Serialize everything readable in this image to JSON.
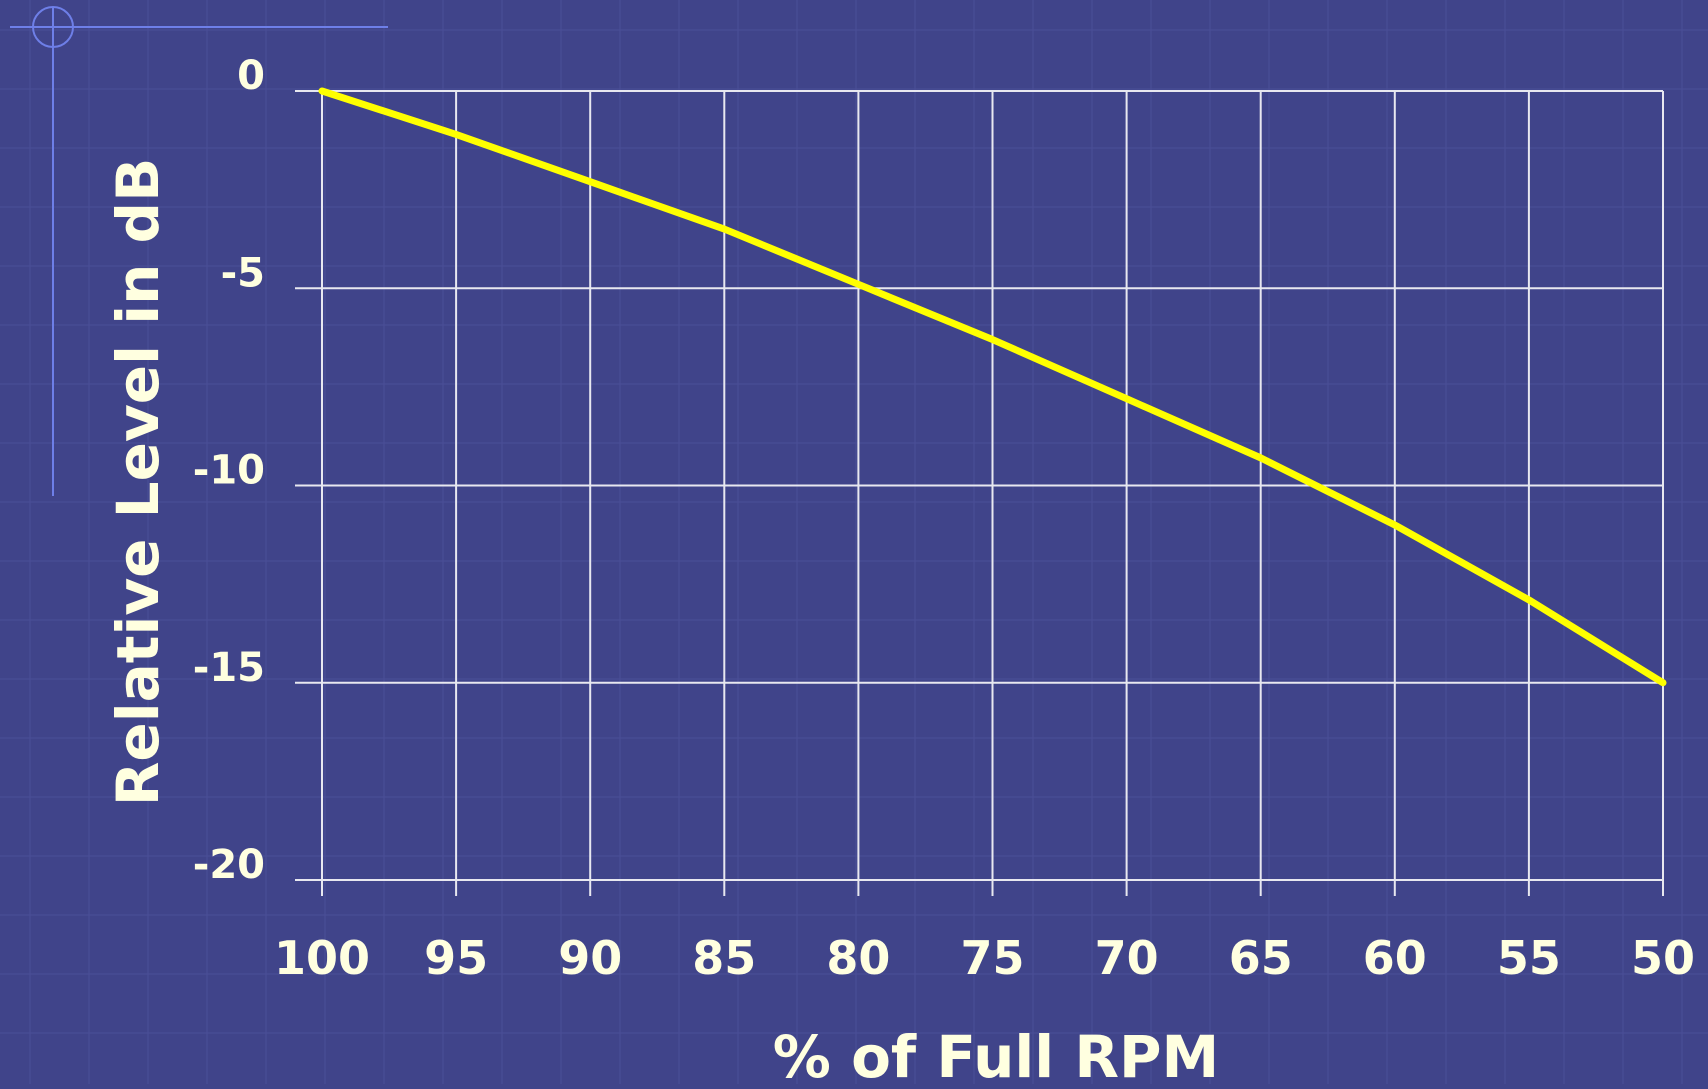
{
  "chart_data": {
    "type": "line",
    "title": "",
    "xlabel": "% of Full RPM",
    "ylabel": "Relative Level in dB",
    "x_ticks": [
      100,
      95,
      90,
      85,
      80,
      75,
      70,
      65,
      60,
      55,
      50
    ],
    "y_ticks": [
      0,
      -5,
      -10,
      -15,
      -20
    ],
    "xlim": [
      100,
      50
    ],
    "ylim": [
      -20,
      0
    ],
    "grid": true,
    "series": [
      {
        "x": [
          100,
          95,
          90,
          85,
          80,
          75,
          70,
          65,
          60,
          55,
          50
        ],
        "y": [
          0,
          -1.1,
          -2.3,
          -3.5,
          -4.9,
          -6.3,
          -7.8,
          -9.3,
          -11.0,
          -12.9,
          -15.0
        ]
      }
    ]
  },
  "colors": {
    "background": "#40448a",
    "grid": "#e8e8f0",
    "line": "#ffff00",
    "text": "#ffffe0",
    "decor": "#6e7fe8"
  }
}
